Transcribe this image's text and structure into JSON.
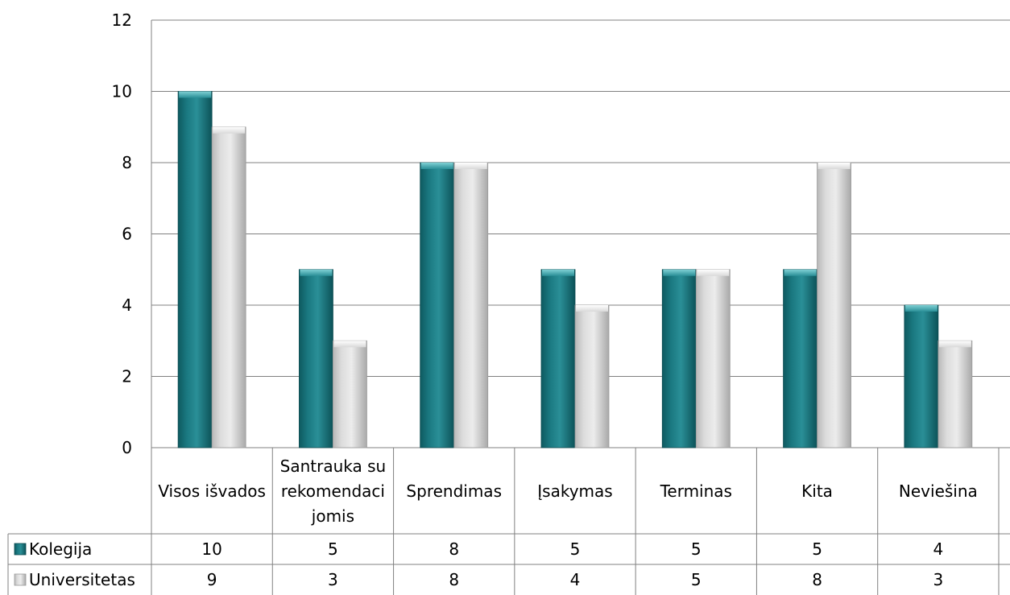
{
  "chart_data": {
    "type": "bar",
    "title": "",
    "xlabel": "",
    "ylabel": "",
    "ylim": [
      0,
      12
    ],
    "yticks": [
      0,
      2,
      4,
      6,
      8,
      10,
      12
    ],
    "grid": true,
    "legend": "data-table",
    "categories": [
      [
        "Visos išvados"
      ],
      [
        "Santrauka su",
        "rekomendaci",
        "jomis"
      ],
      [
        "Sprendimas"
      ],
      [
        "Įsakymas"
      ],
      [
        "Terminas"
      ],
      [
        "Kita"
      ],
      [
        "Neviešina"
      ]
    ],
    "series": [
      {
        "name": "Kolegija",
        "color": "#1f7a80",
        "values": [
          10,
          5,
          8,
          5,
          5,
          5,
          4
        ]
      },
      {
        "name": "Universitetas",
        "color": "#d9d9d9",
        "values": [
          9,
          3,
          8,
          4,
          5,
          8,
          3
        ]
      }
    ]
  }
}
